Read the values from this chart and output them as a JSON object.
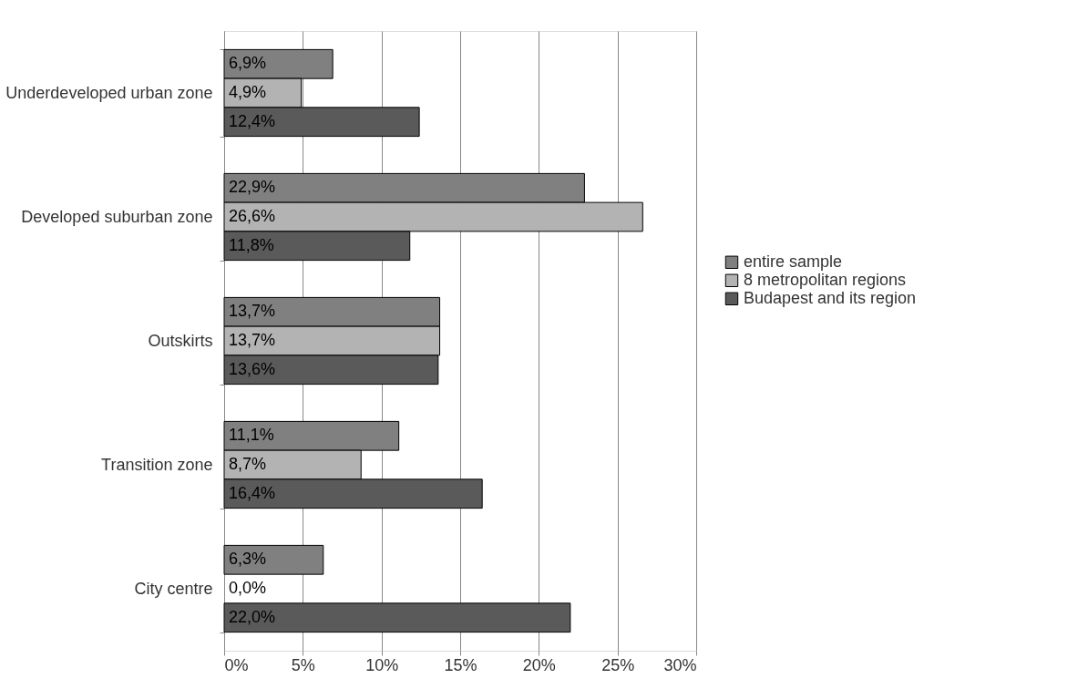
{
  "chart_data": {
    "type": "bar",
    "orientation": "horizontal",
    "categories": [
      "Underdeveloped urban zone",
      "Developed suburban zone",
      "Outskirts",
      "Transition zone",
      "City centre"
    ],
    "series": [
      {
        "name": "entire sample",
        "color": "#808080",
        "values": [
          6.9,
          22.9,
          13.7,
          11.1,
          6.3
        ],
        "value_labels": [
          "6,9%",
          "22,9%",
          "13,7%",
          "11,1%",
          "6,3%"
        ]
      },
      {
        "name": "8 metropolitan regions",
        "color": "#b3b3b3",
        "values": [
          4.9,
          26.6,
          13.7,
          8.7,
          0.0
        ],
        "value_labels": [
          "4,9%",
          "26,6%",
          "13,7%",
          "8,7%",
          "0,0%"
        ]
      },
      {
        "name": "Budapest and its region",
        "color": "#5a5a5a",
        "values": [
          12.4,
          11.8,
          13.6,
          16.4,
          22.0
        ],
        "value_labels": [
          "12,4%",
          "11,8%",
          "13,6%",
          "16,4%",
          "22,0%"
        ]
      }
    ],
    "xlim": [
      0,
      30
    ],
    "xticks": [
      {
        "value": 0,
        "label": "0%"
      },
      {
        "value": 5,
        "label": "5%"
      },
      {
        "value": 10,
        "label": "10%"
      },
      {
        "value": 15,
        "label": "15%"
      },
      {
        "value": 20,
        "label": "20%"
      },
      {
        "value": 25,
        "label": "25%"
      },
      {
        "value": 30,
        "label": "30%"
      }
    ],
    "grid": "x",
    "legend": "right"
  }
}
